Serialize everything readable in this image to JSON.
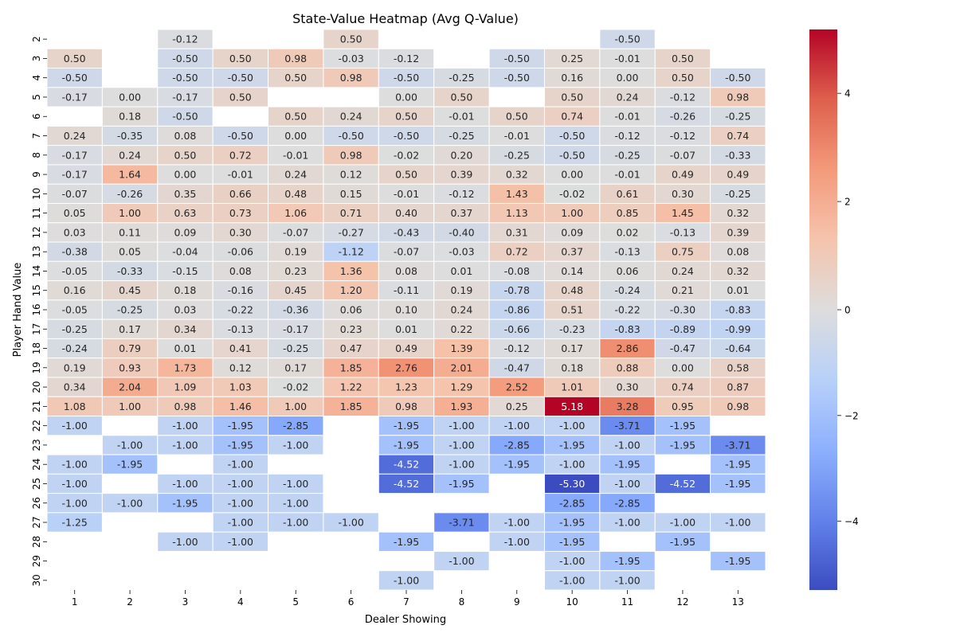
{
  "chart_data": {
    "type": "heatmap",
    "title": "State-Value Heatmap (Avg Q-Value)",
    "xlabel": "Dealer Showing",
    "ylabel": "Player Hand Value",
    "x_categories": [
      "1",
      "2",
      "3",
      "4",
      "5",
      "6",
      "7",
      "8",
      "9",
      "10",
      "11",
      "12",
      "13"
    ],
    "y_categories": [
      "2",
      "3",
      "4",
      "5",
      "6",
      "7",
      "8",
      "9",
      "10",
      "11",
      "12",
      "13",
      "14",
      "15",
      "16",
      "17",
      "18",
      "19",
      "20",
      "21",
      "22",
      "23",
      "24",
      "25",
      "26",
      "27",
      "28",
      "29",
      "30"
    ],
    "values": [
      [
        null,
        null,
        -0.12,
        null,
        null,
        0.5,
        null,
        null,
        null,
        null,
        -0.5,
        null,
        null
      ],
      [
        0.5,
        null,
        -0.5,
        0.5,
        0.98,
        -0.03,
        -0.12,
        null,
        -0.5,
        0.25,
        -0.01,
        0.5,
        null
      ],
      [
        -0.5,
        null,
        -0.5,
        -0.5,
        0.5,
        0.98,
        -0.5,
        -0.25,
        -0.5,
        0.16,
        0.0,
        0.5,
        -0.5
      ],
      [
        -0.17,
        0.0,
        -0.17,
        0.5,
        null,
        null,
        0.0,
        0.5,
        null,
        0.5,
        0.24,
        -0.12,
        0.98
      ],
      [
        null,
        0.18,
        -0.5,
        null,
        0.5,
        0.24,
        0.5,
        -0.01,
        0.5,
        0.74,
        -0.01,
        -0.26,
        -0.25
      ],
      [
        0.24,
        -0.35,
        0.08,
        -0.5,
        0.0,
        -0.5,
        -0.5,
        -0.25,
        -0.01,
        -0.5,
        -0.12,
        -0.12,
        0.74
      ],
      [
        -0.17,
        0.24,
        0.5,
        0.72,
        -0.01,
        0.98,
        -0.02,
        0.2,
        -0.25,
        -0.5,
        -0.25,
        -0.07,
        -0.33
      ],
      [
        -0.17,
        1.64,
        0.0,
        -0.01,
        0.24,
        0.12,
        0.5,
        0.39,
        0.32,
        0.0,
        -0.01,
        0.49,
        0.49
      ],
      [
        -0.07,
        -0.26,
        0.35,
        0.66,
        0.48,
        0.15,
        -0.01,
        -0.12,
        1.43,
        -0.02,
        0.61,
        0.3,
        -0.25
      ],
      [
        0.05,
        1.0,
        0.63,
        0.73,
        1.06,
        0.71,
        0.4,
        0.37,
        1.13,
        1.0,
        0.85,
        1.45,
        0.32
      ],
      [
        0.03,
        0.11,
        0.09,
        0.3,
        -0.07,
        -0.27,
        -0.43,
        -0.4,
        0.31,
        0.09,
        0.02,
        -0.13,
        0.39
      ],
      [
        -0.38,
        0.05,
        -0.04,
        -0.06,
        0.19,
        -1.12,
        -0.07,
        -0.03,
        0.72,
        0.37,
        -0.13,
        0.75,
        0.08
      ],
      [
        -0.05,
        -0.33,
        -0.15,
        0.08,
        0.23,
        1.36,
        0.08,
        0.01,
        -0.08,
        0.14,
        0.06,
        0.24,
        0.32
      ],
      [
        0.16,
        0.45,
        0.18,
        -0.16,
        0.45,
        1.2,
        -0.11,
        0.19,
        -0.78,
        0.48,
        -0.24,
        0.21,
        0.01
      ],
      [
        -0.05,
        -0.25,
        0.03,
        -0.22,
        -0.36,
        0.06,
        0.1,
        0.24,
        -0.86,
        0.51,
        -0.22,
        -0.3,
        -0.83
      ],
      [
        -0.25,
        0.17,
        0.34,
        -0.13,
        -0.17,
        0.23,
        0.01,
        0.22,
        -0.66,
        -0.23,
        -0.83,
        -0.89,
        -0.99
      ],
      [
        -0.24,
        0.79,
        0.01,
        0.41,
        -0.25,
        0.47,
        0.49,
        1.39,
        -0.12,
        0.17,
        2.86,
        -0.47,
        -0.64
      ],
      [
        0.19,
        0.93,
        1.73,
        0.12,
        0.17,
        1.85,
        2.76,
        2.01,
        -0.47,
        0.18,
        0.88,
        -0.0,
        0.58
      ],
      [
        0.34,
        2.04,
        1.09,
        1.03,
        -0.02,
        1.22,
        1.23,
        1.29,
        2.52,
        1.01,
        0.3,
        0.74,
        0.87
      ],
      [
        1.08,
        1.0,
        0.98,
        1.46,
        1.0,
        1.85,
        0.98,
        1.93,
        0.25,
        5.18,
        3.28,
        0.95,
        0.98
      ],
      [
        -1.0,
        null,
        -1.0,
        -1.95,
        -2.85,
        null,
        -1.95,
        -1.0,
        -1.0,
        -1.0,
        -3.71,
        -1.95,
        null
      ],
      [
        null,
        -1.0,
        -1.0,
        -1.95,
        -1.0,
        null,
        -1.95,
        -1.0,
        -2.85,
        -1.95,
        -1.0,
        -1.95,
        -3.71
      ],
      [
        -1.0,
        -1.95,
        null,
        -1.0,
        null,
        null,
        -4.52,
        -1.0,
        -1.95,
        -1.0,
        -1.95,
        null,
        -1.95
      ],
      [
        -1.0,
        null,
        -1.0,
        -1.0,
        -1.0,
        null,
        -4.52,
        -1.95,
        null,
        -5.3,
        -1.0,
        -4.52,
        -1.95
      ],
      [
        -1.0,
        -1.0,
        -1.95,
        -1.0,
        -1.0,
        null,
        null,
        null,
        null,
        -2.85,
        -2.85,
        null,
        null
      ],
      [
        -1.25,
        null,
        null,
        -1.0,
        -1.0,
        -1.0,
        null,
        -3.71,
        -1.0,
        -1.95,
        -1.0,
        -1.0,
        -1.0
      ],
      [
        null,
        null,
        -1.0,
        -1.0,
        null,
        null,
        -1.95,
        null,
        -1.0,
        -1.95,
        null,
        -1.95,
        null
      ],
      [
        null,
        null,
        null,
        null,
        null,
        null,
        null,
        -1.0,
        null,
        -1.0,
        -1.95,
        null,
        -1.95
      ],
      [
        null,
        null,
        null,
        null,
        null,
        null,
        -1.0,
        null,
        null,
        -1.0,
        -1.0,
        null,
        null
      ]
    ],
    "colorbar": {
      "colormap": "coolwarm",
      "vmin": -5.3,
      "vmax": 5.18,
      "center": 0,
      "ticks": [
        -4,
        -2,
        0,
        2,
        4
      ],
      "tick_labels": [
        "−4",
        "−2",
        "0",
        "2",
        "4"
      ]
    },
    "value_format": "2 decimals",
    "grid": true
  }
}
